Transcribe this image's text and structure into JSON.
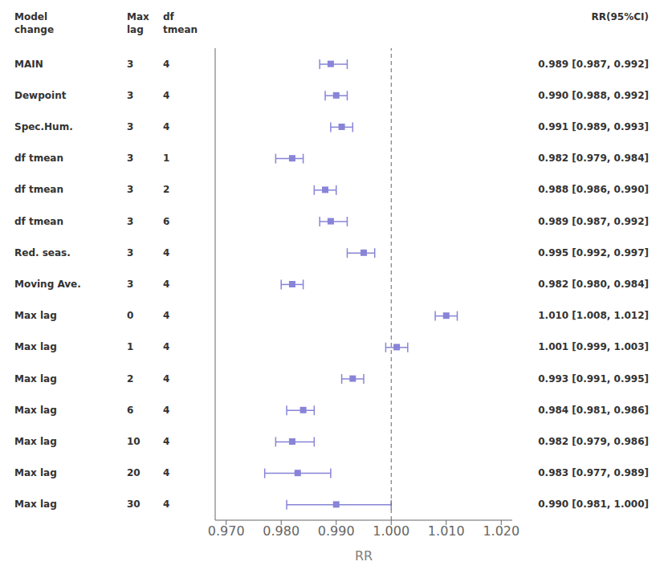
{
  "chart_data": {
    "type": "forest",
    "xlabel": "RR",
    "categories": [
      "MAIN",
      "Dewpoint",
      "Spec.Hum.",
      "df tmean",
      "df tmean",
      "df tmean",
      "Red. seas.",
      "Moving Ave.",
      "Max lag",
      "Max lag",
      "Max lag",
      "Max lag",
      "Max lag",
      "Max lag",
      "Max lag"
    ],
    "values": [
      0.989,
      0.99,
      0.991,
      0.982,
      0.988,
      0.989,
      0.995,
      0.982,
      1.01,
      1.001,
      0.993,
      0.984,
      0.982,
      0.983,
      0.99
    ],
    "ci_lo": [
      0.987,
      0.988,
      0.989,
      0.979,
      0.986,
      0.987,
      0.992,
      0.98,
      1.008,
      0.999,
      0.991,
      0.981,
      0.979,
      0.977,
      0.981
    ],
    "ci_hi": [
      0.992,
      0.992,
      0.993,
      0.984,
      0.99,
      0.992,
      0.997,
      0.984,
      1.012,
      1.003,
      0.995,
      0.986,
      0.986,
      0.989,
      1.0
    ],
    "value_labels": [
      "0.989 [0.987, 0.992]",
      "0.990 [0.988, 0.992]",
      "0.991 [0.989, 0.993]",
      "0.982 [0.979, 0.984]",
      "0.988 [0.986, 0.990]",
      "0.989 [0.987, 0.992]",
      "0.995 [0.992, 0.997]",
      "0.982 [0.980, 0.984]",
      "1.010 [1.008, 1.012]",
      "1.001 [0.999, 1.003]",
      "0.993 [0.991, 0.995]",
      "0.984 [0.981, 0.986]",
      "0.982 [0.979, 0.986]",
      "0.983 [0.977, 0.989]",
      "0.990 [0.981, 1.000]"
    ],
    "max_lag": [
      3,
      3,
      3,
      3,
      3,
      3,
      3,
      3,
      0,
      1,
      2,
      6,
      10,
      20,
      30
    ],
    "df": [
      4,
      4,
      4,
      1,
      2,
      6,
      4,
      4,
      4,
      4,
      4,
      4,
      4,
      4,
      4
    ],
    "headers": {
      "label": "Model\nchange",
      "max_lag": "Max\nlag",
      "df": "df\ntmean",
      "rr": "RR(95%CI)"
    },
    "ref_line": 1.0,
    "xlim": [
      0.968,
      1.022
    ],
    "xticks": [
      {
        "value": 0.97,
        "label": "0.970"
      },
      {
        "value": 0.98,
        "label": "0.980"
      },
      {
        "value": 0.99,
        "label": "0.990"
      },
      {
        "value": 1.0,
        "label": "1.000"
      },
      {
        "value": 1.01,
        "label": "1.010"
      },
      {
        "value": 1.02,
        "label": "1.020"
      }
    ]
  }
}
